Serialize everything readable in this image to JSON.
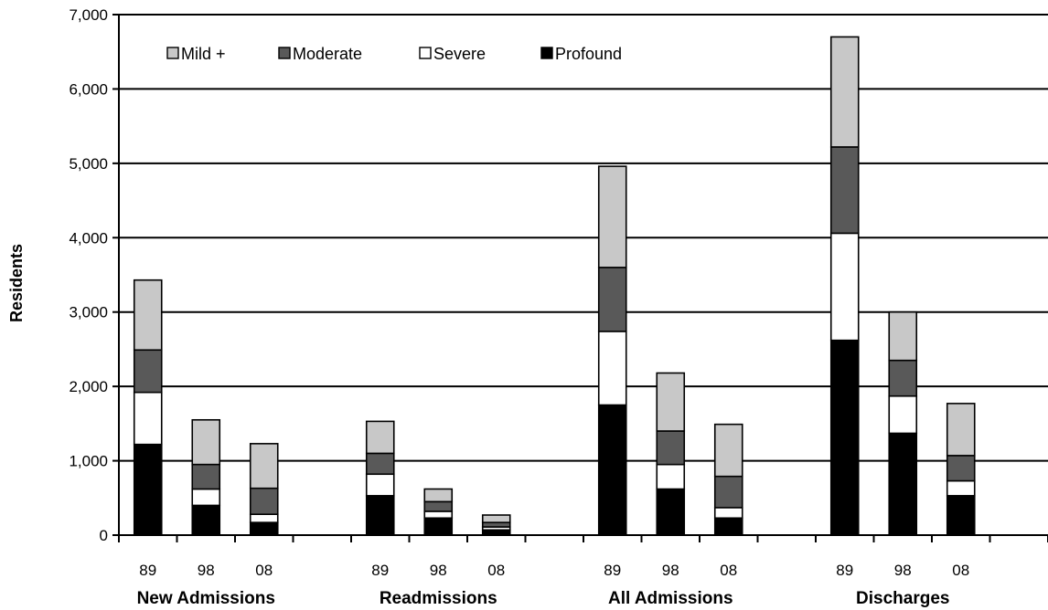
{
  "chart_data": {
    "type": "bar",
    "stacked": true,
    "ylabel": "Residents",
    "ylim": [
      0,
      7000
    ],
    "y_ticks": [
      "0",
      "1,000",
      "2,000",
      "3,000",
      "4,000",
      "5,000",
      "6,000",
      "7,000"
    ],
    "y_tick_values": [
      0,
      1000,
      2000,
      3000,
      4000,
      5000,
      6000,
      7000
    ],
    "grid": "horizontal",
    "legend_position": "top-left",
    "groups": [
      {
        "label": "New Admissions",
        "categories": [
          "89",
          "98",
          "08"
        ]
      },
      {
        "label": "Readmissions",
        "categories": [
          "89",
          "98",
          "08"
        ]
      },
      {
        "label": "All Admissions",
        "categories": [
          "89",
          "98",
          "08"
        ]
      },
      {
        "label": "Discharges",
        "categories": [
          "89",
          "98",
          "08"
        ]
      }
    ],
    "series": [
      {
        "name": "Profound",
        "color": "#000000",
        "values": [
          1220,
          400,
          170,
          530,
          230,
          70,
          1750,
          620,
          230,
          2620,
          1370,
          530
        ]
      },
      {
        "name": "Severe",
        "color": "#ffffff",
        "values": [
          700,
          220,
          110,
          290,
          90,
          40,
          990,
          330,
          140,
          1440,
          500,
          200
        ]
      },
      {
        "name": "Moderate",
        "color": "#595959",
        "values": [
          570,
          330,
          350,
          280,
          130,
          60,
          860,
          450,
          420,
          1160,
          480,
          340
        ]
      },
      {
        "name": "Mild +",
        "color": "#c8c8c8",
        "values": [
          940,
          600,
          600,
          430,
          170,
          100,
          1360,
          780,
          700,
          1480,
          650,
          700
        ]
      }
    ],
    "legend_order": [
      "Mild +",
      "Moderate",
      "Severe",
      "Profound"
    ]
  }
}
